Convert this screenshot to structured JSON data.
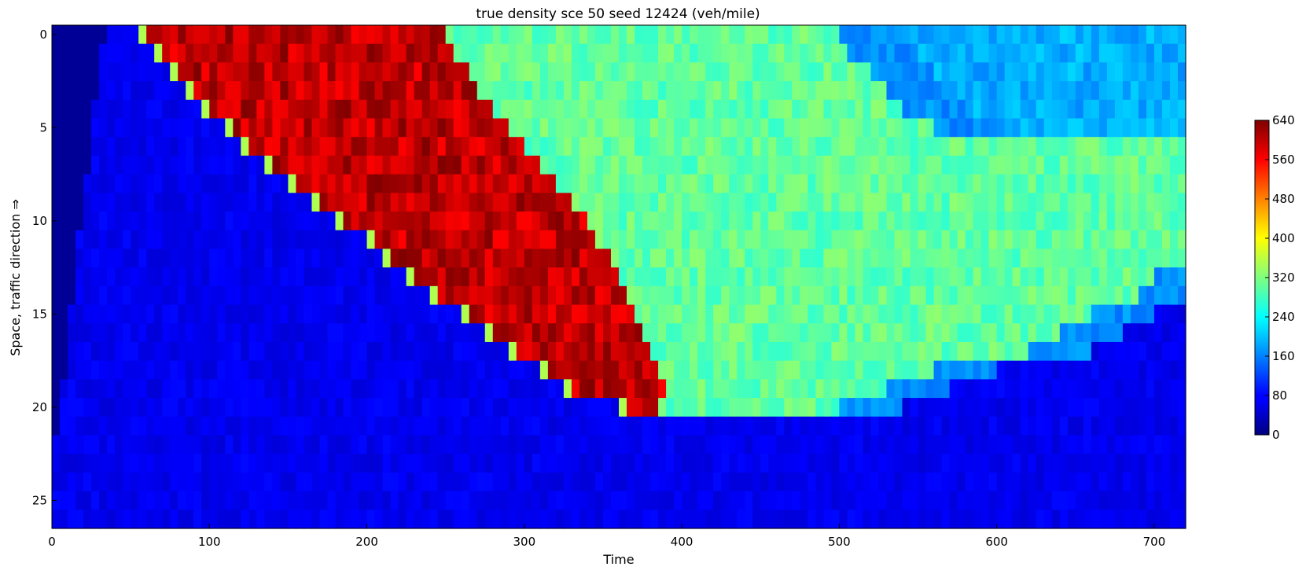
{
  "chart_data": {
    "type": "heatmap",
    "title": "true density sce 50 seed 12424 (veh/mile)",
    "xlabel": "Time",
    "ylabel": "Space, traffic direction ⇒",
    "xlim": [
      0,
      720
    ],
    "ylim": [
      0,
      27
    ],
    "y_inverted": true,
    "x_ticks": [
      0,
      100,
      200,
      300,
      400,
      500,
      600,
      700
    ],
    "y_ticks": [
      0,
      5,
      10,
      15,
      20,
      25
    ],
    "colormap": "jet",
    "color_range": [
      0,
      640
    ],
    "colorbar_ticks": [
      0,
      80,
      160,
      240,
      320,
      400,
      480,
      560,
      640
    ],
    "colorbar_position": "right",
    "rows": 27,
    "free_flow_density": 70,
    "empty_road_density": 15,
    "empty_road_until_time": [
      33,
      31,
      30,
      28,
      27,
      26,
      24,
      23,
      22,
      20,
      19,
      17,
      16,
      15,
      13,
      12,
      11,
      9,
      8,
      6,
      5,
      4,
      2,
      1,
      0,
      0,
      0
    ],
    "jam_density": 600,
    "jam_start_time": [
      55,
      65,
      75,
      85,
      95,
      110,
      120,
      135,
      150,
      165,
      180,
      200,
      210,
      225,
      240,
      260,
      275,
      290,
      310,
      325,
      360,
      1000,
      1000,
      1000,
      1000,
      1000,
      1000
    ],
    "jam_end_time": [
      250,
      255,
      265,
      270,
      280,
      290,
      300,
      310,
      320,
      330,
      340,
      345,
      355,
      360,
      365,
      370,
      375,
      380,
      385,
      390,
      385,
      1000,
      1000,
      1000,
      1000,
      1000,
      1000
    ],
    "queue_density": 300,
    "queue_end_time": [
      500,
      505,
      520,
      530,
      540,
      560,
      720,
      720,
      720,
      720,
      720,
      720,
      720,
      700,
      690,
      660,
      640,
      620,
      560,
      530,
      500,
      385,
      0,
      0,
      0,
      0,
      0
    ],
    "recovery_density": 170
  }
}
